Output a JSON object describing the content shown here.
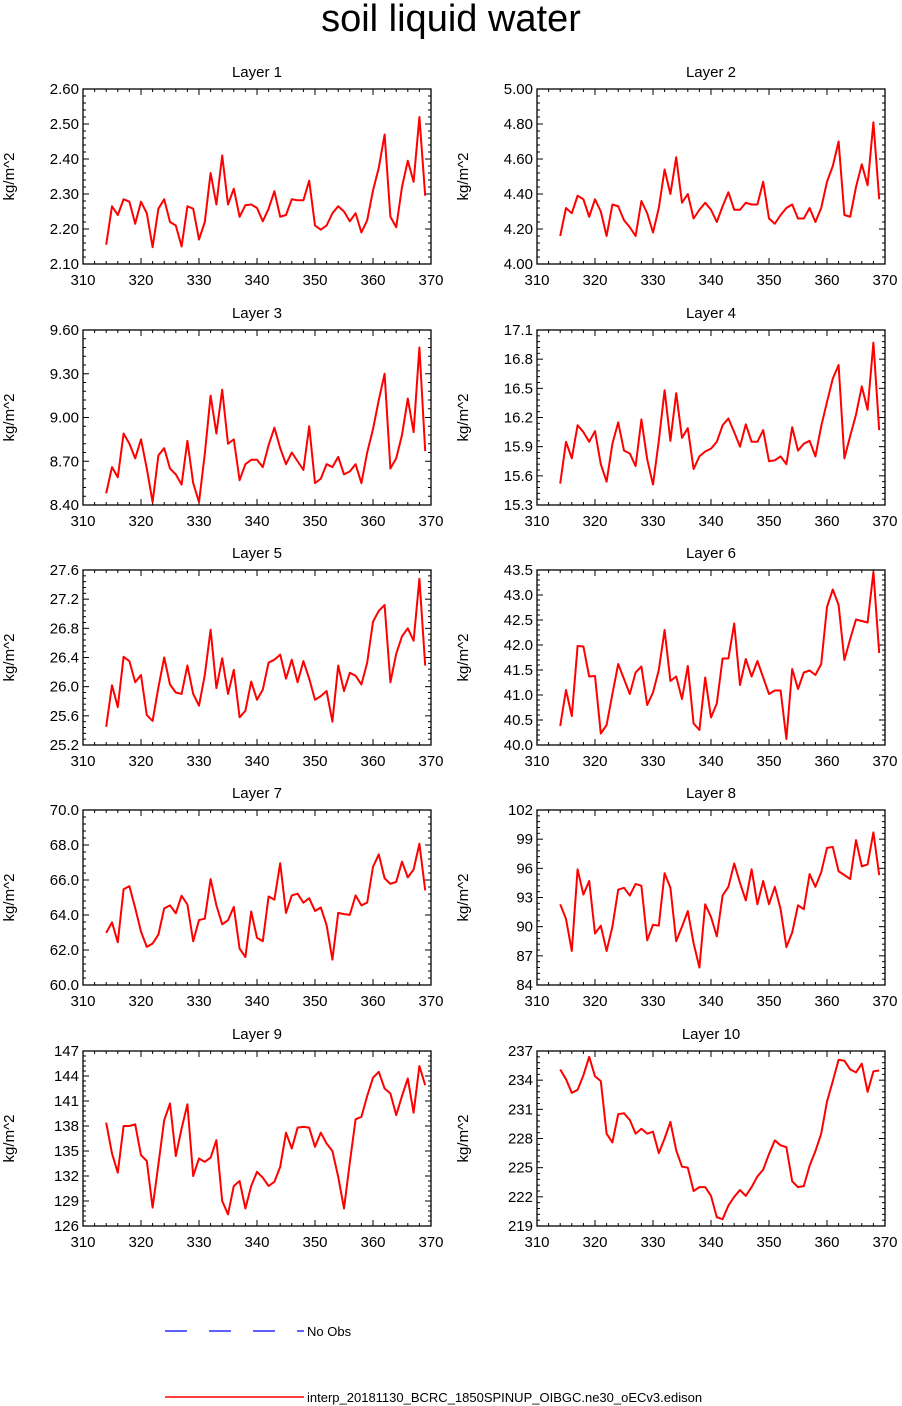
{
  "title": "soil liquid water",
  "colors": {
    "model": "#ff0000",
    "obs": "#0000ff"
  },
  "legend": {
    "obs_label": "No Obs",
    "model_label": "interp_20181130_BCRC_1850SPINUP_OIBGC.ne30_oECv3.edison"
  },
  "chart_data": [
    {
      "type": "line",
      "title": "Layer 1",
      "ylabel": "kg/m^2",
      "xlim": [
        310,
        370
      ],
      "ylim": [
        2.1,
        2.6
      ],
      "xticks": [
        "310",
        "320",
        "330",
        "340",
        "350",
        "360",
        "370"
      ],
      "yticks": [
        "2.10",
        "2.20",
        "2.30",
        "2.40",
        "2.50",
        "2.60"
      ],
      "x_start": 314,
      "series": [
        {
          "values": [
            2.155,
            2.265,
            2.24,
            2.285,
            2.278,
            2.215,
            2.278,
            2.245,
            2.148,
            2.258,
            2.285,
            2.22,
            2.21,
            2.15,
            2.265,
            2.258,
            2.17,
            2.22,
            2.36,
            2.27,
            2.41,
            2.27,
            2.315,
            2.235,
            2.268,
            2.27,
            2.26,
            2.222,
            2.258,
            2.308,
            2.235,
            2.24,
            2.285,
            2.282,
            2.282,
            2.338,
            2.21,
            2.198,
            2.21,
            2.245,
            2.265,
            2.25,
            2.222,
            2.245,
            2.19,
            2.225,
            2.31,
            2.375,
            2.47,
            2.235,
            2.205,
            2.32,
            2.395,
            2.335,
            2.52,
            2.295
          ]
        }
      ]
    },
    {
      "type": "line",
      "title": "Layer 2",
      "ylabel": "kg/m^2",
      "xlim": [
        310,
        370
      ],
      "ylim": [
        4.0,
        5.0
      ],
      "xticks": [
        "310",
        "320",
        "330",
        "340",
        "350",
        "360",
        "370"
      ],
      "yticks": [
        "4.00",
        "4.20",
        "4.40",
        "4.60",
        "4.80",
        "5.00"
      ],
      "x_start": 314,
      "series": [
        {
          "values": [
            4.16,
            4.32,
            4.29,
            4.39,
            4.37,
            4.27,
            4.37,
            4.3,
            4.16,
            4.34,
            4.33,
            4.25,
            4.21,
            4.16,
            4.36,
            4.29,
            4.18,
            4.32,
            4.54,
            4.4,
            4.61,
            4.35,
            4.4,
            4.26,
            4.31,
            4.35,
            4.31,
            4.24,
            4.33,
            4.41,
            4.31,
            4.31,
            4.35,
            4.34,
            4.34,
            4.47,
            4.26,
            4.23,
            4.28,
            4.32,
            4.34,
            4.26,
            4.26,
            4.32,
            4.24,
            4.32,
            4.47,
            4.56,
            4.7,
            4.28,
            4.27,
            4.44,
            4.57,
            4.45,
            4.81,
            4.37
          ]
        }
      ]
    },
    {
      "type": "line",
      "title": "Layer 3",
      "ylabel": "kg/m^2",
      "xlim": [
        310,
        370
      ],
      "ylim": [
        8.4,
        9.6
      ],
      "xticks": [
        "310",
        "320",
        "330",
        "340",
        "350",
        "360",
        "370"
      ],
      "yticks": [
        "8.40",
        "8.70",
        "9.00",
        "9.30",
        "9.60"
      ],
      "x_start": 314,
      "series": [
        {
          "values": [
            8.48,
            8.66,
            8.59,
            8.89,
            8.82,
            8.72,
            8.85,
            8.65,
            8.42,
            8.74,
            8.79,
            8.65,
            8.61,
            8.54,
            8.84,
            8.55,
            8.42,
            8.75,
            9.15,
            8.89,
            9.19,
            8.82,
            8.85,
            8.57,
            8.68,
            8.71,
            8.71,
            8.66,
            8.81,
            8.93,
            8.79,
            8.68,
            8.76,
            8.7,
            8.64,
            8.94,
            8.55,
            8.58,
            8.68,
            8.66,
            8.73,
            8.61,
            8.63,
            8.68,
            8.55,
            8.76,
            8.92,
            9.12,
            9.3,
            8.65,
            8.72,
            8.88,
            9.13,
            8.9,
            9.48,
            8.77
          ]
        }
      ]
    },
    {
      "type": "line",
      "title": "Layer 4",
      "ylabel": "kg/m^2",
      "xlim": [
        310,
        370
      ],
      "ylim": [
        15.3,
        17.1
      ],
      "xticks": [
        "310",
        "320",
        "330",
        "340",
        "350",
        "360",
        "370"
      ],
      "yticks": [
        "15.3",
        "15.6",
        "15.9",
        "16.2",
        "16.5",
        "16.8",
        "17.1"
      ],
      "x_start": 314,
      "series": [
        {
          "values": [
            15.52,
            15.95,
            15.78,
            16.12,
            16.05,
            15.95,
            16.06,
            15.72,
            15.54,
            15.93,
            16.15,
            15.86,
            15.83,
            15.7,
            16.18,
            15.77,
            15.51,
            15.96,
            16.48,
            15.96,
            16.45,
            15.99,
            16.09,
            15.67,
            15.8,
            15.85,
            15.88,
            15.95,
            16.12,
            16.19,
            16.05,
            15.9,
            16.13,
            15.95,
            15.95,
            16.07,
            15.75,
            15.76,
            15.8,
            15.72,
            16.1,
            15.86,
            15.93,
            15.96,
            15.8,
            16.11,
            16.36,
            16.6,
            16.74,
            15.78,
            16.01,
            16.23,
            16.52,
            16.28,
            16.97,
            16.07
          ]
        }
      ]
    },
    {
      "type": "line",
      "title": "Layer 5",
      "ylabel": "kg/m^2",
      "xlim": [
        310,
        370
      ],
      "ylim": [
        25.2,
        27.6
      ],
      "xticks": [
        "310",
        "320",
        "330",
        "340",
        "350",
        "360",
        "370"
      ],
      "yticks": [
        "25.2",
        "25.6",
        "26.0",
        "26.4",
        "26.8",
        "27.2",
        "27.6"
      ],
      "x_start": 314,
      "series": [
        {
          "values": [
            25.45,
            26.02,
            25.72,
            26.41,
            26.35,
            26.06,
            26.16,
            25.61,
            25.53,
            25.99,
            26.4,
            26.03,
            25.92,
            25.9,
            26.29,
            25.9,
            25.74,
            26.16,
            26.78,
            25.98,
            26.39,
            25.9,
            26.23,
            25.58,
            25.67,
            26.07,
            25.82,
            25.96,
            26.33,
            26.37,
            26.44,
            26.11,
            26.37,
            26.06,
            26.35,
            26.11,
            25.82,
            25.87,
            25.94,
            25.52,
            26.29,
            25.94,
            26.19,
            26.15,
            26.03,
            26.33,
            26.89,
            27.04,
            27.12,
            26.06,
            26.45,
            26.69,
            26.8,
            26.63,
            27.48,
            26.29
          ]
        }
      ]
    },
    {
      "type": "line",
      "title": "Layer 6",
      "ylabel": "kg/m^2",
      "xlim": [
        310,
        370
      ],
      "ylim": [
        40.0,
        43.5
      ],
      "xticks": [
        "310",
        "320",
        "330",
        "340",
        "350",
        "360",
        "370"
      ],
      "yticks": [
        "40.0",
        "40.5",
        "41.0",
        "41.5",
        "42.0",
        "42.5",
        "43.0",
        "43.5"
      ],
      "x_start": 314,
      "series": [
        {
          "values": [
            40.38,
            41.1,
            40.58,
            41.98,
            41.97,
            41.37,
            41.38,
            40.23,
            40.4,
            41.02,
            41.62,
            41.32,
            41.02,
            41.45,
            41.57,
            40.8,
            41.05,
            41.5,
            42.3,
            41.28,
            41.37,
            40.92,
            41.58,
            40.43,
            40.3,
            41.35,
            40.55,
            40.83,
            41.73,
            41.73,
            42.43,
            41.2,
            41.72,
            41.37,
            41.68,
            41.35,
            41.02,
            41.09,
            41.09,
            40.12,
            41.52,
            41.12,
            41.45,
            41.49,
            41.4,
            41.62,
            42.76,
            43.11,
            42.8,
            41.7,
            42.12,
            42.51,
            42.48,
            42.45,
            43.46,
            41.84
          ]
        }
      ]
    },
    {
      "type": "line",
      "title": "Layer 7",
      "ylabel": "kg/m^2",
      "xlim": [
        310,
        370
      ],
      "ylim": [
        60.0,
        70.0
      ],
      "xticks": [
        "310",
        "320",
        "330",
        "340",
        "350",
        "360",
        "370"
      ],
      "yticks": [
        "60.0",
        "62.0",
        "64.0",
        "66.0",
        "68.0",
        "70.0"
      ],
      "x_start": 314,
      "series": [
        {
          "values": [
            62.98,
            63.58,
            62.44,
            65.47,
            65.65,
            64.4,
            63.05,
            62.18,
            62.37,
            62.88,
            64.38,
            64.55,
            64.1,
            65.1,
            64.6,
            62.5,
            63.71,
            63.79,
            66.05,
            64.55,
            63.47,
            63.7,
            64.46,
            62.08,
            61.6,
            64.2,
            62.7,
            62.5,
            65.06,
            64.88,
            66.96,
            64.12,
            65.12,
            65.22,
            64.7,
            64.96,
            64.23,
            64.43,
            63.42,
            61.45,
            64.12,
            64.05,
            64.01,
            65.12,
            64.55,
            64.71,
            66.75,
            67.46,
            66.1,
            65.78,
            65.89,
            67.05,
            66.15,
            66.6,
            68.07,
            65.41
          ]
        }
      ]
    },
    {
      "type": "line",
      "title": "Layer 8",
      "ylabel": "kg/m^2",
      "xlim": [
        310,
        370
      ],
      "ylim": [
        84,
        102
      ],
      "xticks": [
        "310",
        "320",
        "330",
        "340",
        "350",
        "360",
        "370"
      ],
      "yticks": [
        "84",
        "87",
        "90",
        "93",
        "96",
        "99",
        "102"
      ],
      "x_start": 314,
      "series": [
        {
          "values": [
            92.3,
            90.8,
            87.5,
            95.9,
            93.3,
            94.7,
            89.3,
            90.1,
            87.5,
            90.0,
            93.8,
            94.0,
            93.2,
            94.4,
            94.2,
            88.6,
            90.2,
            90.1,
            95.5,
            94.0,
            88.5,
            90.0,
            91.6,
            88.3,
            85.8,
            92.3,
            91.0,
            89.0,
            93.2,
            94.1,
            96.5,
            94.5,
            92.7,
            95.9,
            92.3,
            94.7,
            92.3,
            94.1,
            91.8,
            87.9,
            89.4,
            92.2,
            91.8,
            95.4,
            94.1,
            95.6,
            98.1,
            98.2,
            95.7,
            95.3,
            94.9,
            98.9,
            96.2,
            96.4,
            99.7,
            95.3
          ]
        }
      ]
    },
    {
      "type": "line",
      "title": "Layer 9",
      "ylabel": "kg/m^2",
      "xlim": [
        310,
        370
      ],
      "ylim": [
        126,
        147
      ],
      "xticks": [
        "310",
        "320",
        "330",
        "340",
        "350",
        "360",
        "370"
      ],
      "yticks": [
        "126",
        "129",
        "132",
        "135",
        "138",
        "141",
        "144",
        "147"
      ],
      "x_start": 314,
      "series": [
        {
          "values": [
            138.4,
            134.7,
            132.4,
            138.0,
            138.0,
            138.2,
            134.5,
            133.8,
            128.2,
            133.4,
            138.7,
            140.7,
            134.4,
            137.7,
            140.6,
            132.0,
            134.1,
            133.7,
            134.2,
            136.3,
            129.0,
            127.4,
            130.8,
            131.4,
            128.1,
            130.8,
            132.5,
            131.8,
            130.8,
            131.3,
            133.1,
            137.2,
            135.3,
            137.8,
            137.9,
            137.8,
            135.5,
            137.2,
            135.9,
            135.0,
            131.9,
            128.1,
            133.6,
            138.8,
            139.1,
            141.6,
            143.8,
            144.5,
            142.5,
            141.9,
            139.3,
            141.6,
            143.7,
            139.6,
            145.2,
            142.9
          ]
        }
      ]
    },
    {
      "type": "line",
      "title": "Layer 10",
      "ylabel": "kg/m^2",
      "xlim": [
        310,
        370
      ],
      "ylim": [
        219,
        237
      ],
      "xticks": [
        "310",
        "320",
        "330",
        "340",
        "350",
        "360",
        "370"
      ],
      "yticks": [
        "219",
        "222",
        "225",
        "228",
        "231",
        "234",
        "237"
      ],
      "x_start": 314,
      "series": [
        {
          "values": [
            235.1,
            234.1,
            232.7,
            233.0,
            234.5,
            236.4,
            234.4,
            233.9,
            228.5,
            227.6,
            230.5,
            230.6,
            229.9,
            228.5,
            229.0,
            228.5,
            228.7,
            226.5,
            228.0,
            229.7,
            226.8,
            225.1,
            225.0,
            222.6,
            223.0,
            223.0,
            222.1,
            219.9,
            219.7,
            221.1,
            222.0,
            222.7,
            222.1,
            223.0,
            224.1,
            224.8,
            226.4,
            227.8,
            227.3,
            227.1,
            223.6,
            223.0,
            223.1,
            225.2,
            226.7,
            228.5,
            231.8,
            233.9,
            236.1,
            236.0,
            235.1,
            234.8,
            235.7,
            232.8,
            234.9,
            235.0
          ]
        }
      ]
    }
  ]
}
